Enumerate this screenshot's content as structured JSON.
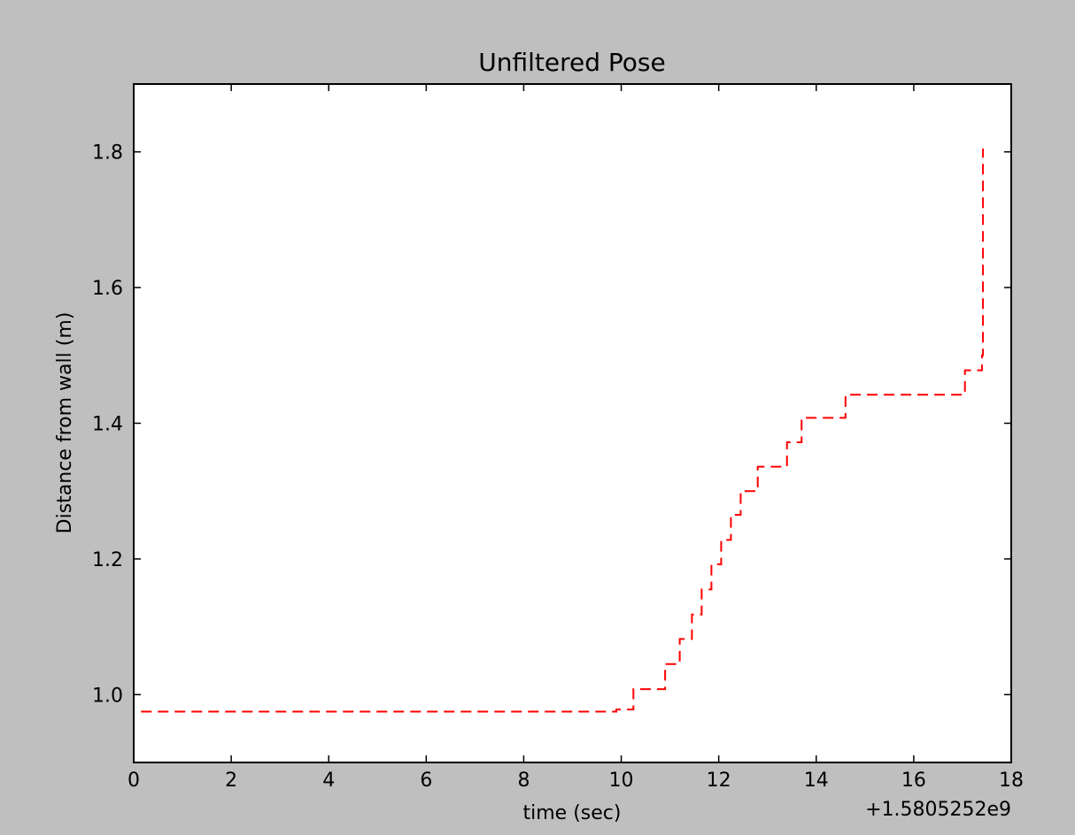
{
  "chart_data": {
    "type": "line",
    "title": "Unfiltered Pose",
    "xlabel": "time (sec)",
    "ylabel": "Distance from wall (m)",
    "x_offset_label": "+1.5805252e9",
    "xlim": [
      0,
      18
    ],
    "ylim": [
      0.9,
      1.9
    ],
    "x_ticks": [
      0,
      2,
      4,
      6,
      8,
      10,
      12,
      14,
      16,
      18
    ],
    "x_tick_labels": [
      "0",
      "2",
      "4",
      "6",
      "8",
      "10",
      "12",
      "14",
      "16",
      "18"
    ],
    "y_ticks": [
      1.0,
      1.2,
      1.4,
      1.6,
      1.8
    ],
    "y_tick_labels": [
      "1.0",
      "1.2",
      "1.4",
      "1.6",
      "1.8"
    ],
    "grid": false,
    "series": [
      {
        "color": "#ff0000",
        "line_style": "dashed",
        "drawstyle": "steps",
        "x": [
          0.15,
          9.9,
          10.25,
          10.9,
          11.2,
          11.45,
          11.65,
          11.85,
          12.05,
          12.25,
          12.45,
          12.8,
          13.4,
          13.7,
          14.6,
          17.05,
          17.4,
          17.42
        ],
        "y": [
          0.975,
          0.978,
          1.008,
          1.045,
          1.082,
          1.118,
          1.155,
          1.192,
          1.228,
          1.265,
          1.3,
          1.336,
          1.372,
          1.408,
          1.442,
          1.478,
          1.5,
          1.805
        ]
      }
    ]
  }
}
